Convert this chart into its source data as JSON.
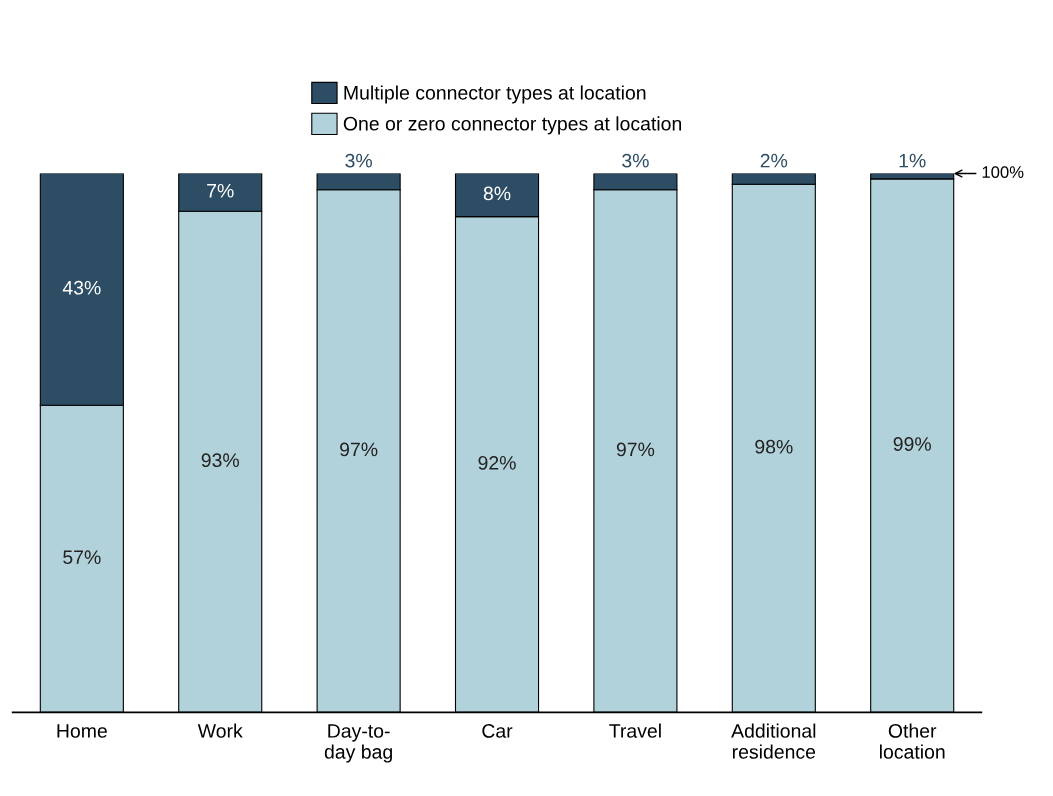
{
  "chart_data": {
    "type": "bar",
    "stacked": true,
    "categories": [
      "Home",
      "Work",
      "Day-to-\nday bag",
      "Car",
      "Travel",
      "Additional\nresidence",
      "Other\nlocation"
    ],
    "series": [
      {
        "name": "One or zero connector types at location",
        "color": "#b2d2db",
        "values": [
          57,
          93,
          97,
          92,
          97,
          98,
          99
        ],
        "value_labels": [
          "57%",
          "93%",
          "97%",
          "92%",
          "97%",
          "98%",
          "99%"
        ]
      },
      {
        "name": "Multiple connector types at location",
        "color": "#2c4d63",
        "values": [
          43,
          7,
          3,
          8,
          3,
          2,
          1
        ],
        "value_labels": [
          "43%",
          "7%",
          "3%",
          "8%",
          "3%",
          "2%",
          "1%"
        ]
      }
    ],
    "tick_labels": "x",
    "legend": "top",
    "grid": false,
    "annotations": [
      "100%"
    ]
  }
}
